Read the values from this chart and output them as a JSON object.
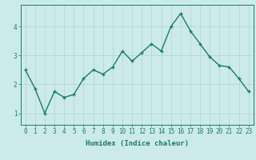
{
  "x": [
    0,
    1,
    2,
    3,
    4,
    5,
    6,
    7,
    8,
    9,
    10,
    11,
    12,
    13,
    14,
    15,
    16,
    17,
    18,
    19,
    20,
    21,
    22,
    23
  ],
  "y": [
    2.5,
    1.85,
    1.0,
    1.75,
    1.55,
    1.65,
    2.2,
    2.5,
    2.35,
    2.6,
    3.15,
    2.8,
    3.1,
    3.4,
    3.15,
    4.0,
    4.45,
    3.85,
    3.4,
    2.95,
    2.65,
    2.6,
    2.2,
    1.75
  ],
  "line_color": "#1a7a6e",
  "marker": "+",
  "marker_size": 3,
  "bg_color": "#cceaea",
  "grid_color": "#add4d4",
  "xlabel": "Humidex (Indice chaleur)",
  "ylim": [
    0.6,
    4.75
  ],
  "xlim": [
    -0.5,
    23.5
  ],
  "yticks": [
    1,
    2,
    3,
    4
  ],
  "xticks": [
    0,
    1,
    2,
    3,
    4,
    5,
    6,
    7,
    8,
    9,
    10,
    11,
    12,
    13,
    14,
    15,
    16,
    17,
    18,
    19,
    20,
    21,
    22,
    23
  ],
  "xlabel_fontsize": 6.5,
  "tick_fontsize": 5.5,
  "line_width": 1.0
}
